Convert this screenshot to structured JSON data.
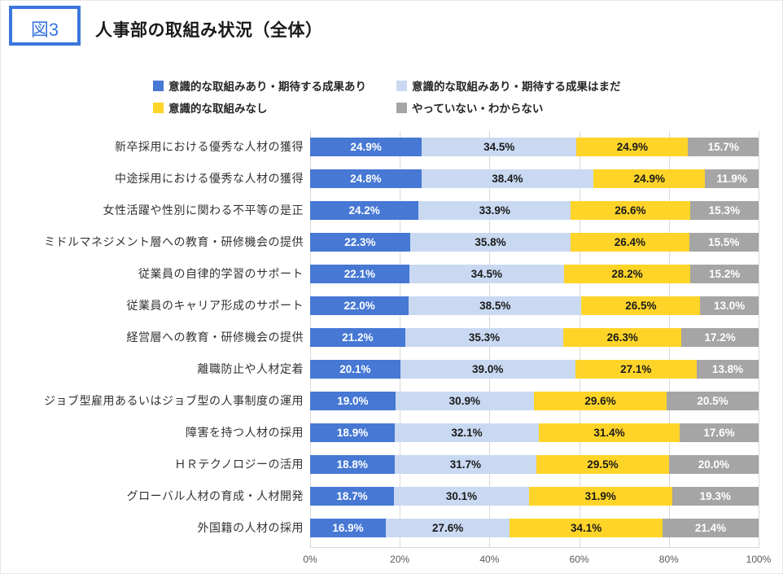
{
  "figure_label": "図3",
  "title": "人事部の取組み状況（全体）",
  "colors": {
    "accent_blue": "#3b76de",
    "grid": "#d9d9d9",
    "axis_text": "#595959"
  },
  "chart_data": {
    "type": "bar",
    "orientation": "horizontal",
    "stacked": true,
    "unit": "%",
    "xlim": [
      0,
      100
    ],
    "x_axis": {
      "ticks": [
        "0%",
        "20%",
        "40%",
        "60%",
        "80%",
        "100%"
      ],
      "gridlines": true
    },
    "legend_position": "top",
    "categories": [
      "新卒採用における優秀な人材の獲得",
      "中途採用における優秀な人材の獲得",
      "女性活躍や性別に関わる不平等の是正",
      "ミドルマネジメント層への教育・研修機会の提供",
      "従業員の自律的学習のサポート",
      "従業員のキャリア形成のサポート",
      "経営層への教育・研修機会の提供",
      "離職防止や人材定着",
      "ジョブ型雇用あるいはジョブ型の人事制度の運用",
      "障害を持つ人材の採用",
      "ＨＲテクノロジーの活用",
      "グローバル人材の育成・人材開発",
      "外国籍の人材の採用"
    ],
    "series": [
      {
        "name": "意識的な取組みあり・期待する成果あり",
        "color": "#4678d4",
        "text_color": "#ffffff",
        "values": [
          24.9,
          24.8,
          24.2,
          22.3,
          22.1,
          22.0,
          21.2,
          20.1,
          19.0,
          18.9,
          18.8,
          18.7,
          16.9
        ]
      },
      {
        "name": "意識的な取組みあり・期待する成果はまだ",
        "color": "#c9d9f2",
        "text_color": "#1a1a1a",
        "values": [
          34.5,
          38.4,
          33.9,
          35.8,
          34.5,
          38.5,
          35.3,
          39.0,
          30.9,
          32.1,
          31.7,
          30.1,
          27.6
        ]
      },
      {
        "name": "意識的な取組みなし",
        "color": "#ffd428",
        "text_color": "#1a1a1a",
        "values": [
          24.9,
          24.9,
          26.6,
          26.4,
          28.2,
          26.5,
          26.3,
          27.1,
          29.6,
          31.4,
          29.5,
          31.9,
          34.1
        ]
      },
      {
        "name": "やっていない・わからない",
        "color": "#a5a5a5",
        "text_color": "#ffffff",
        "values": [
          15.7,
          11.9,
          15.3,
          15.5,
          15.2,
          13.0,
          17.2,
          13.8,
          20.5,
          17.6,
          20.0,
          19.3,
          21.4
        ]
      }
    ],
    "value_format": "one-decimal-percent"
  }
}
